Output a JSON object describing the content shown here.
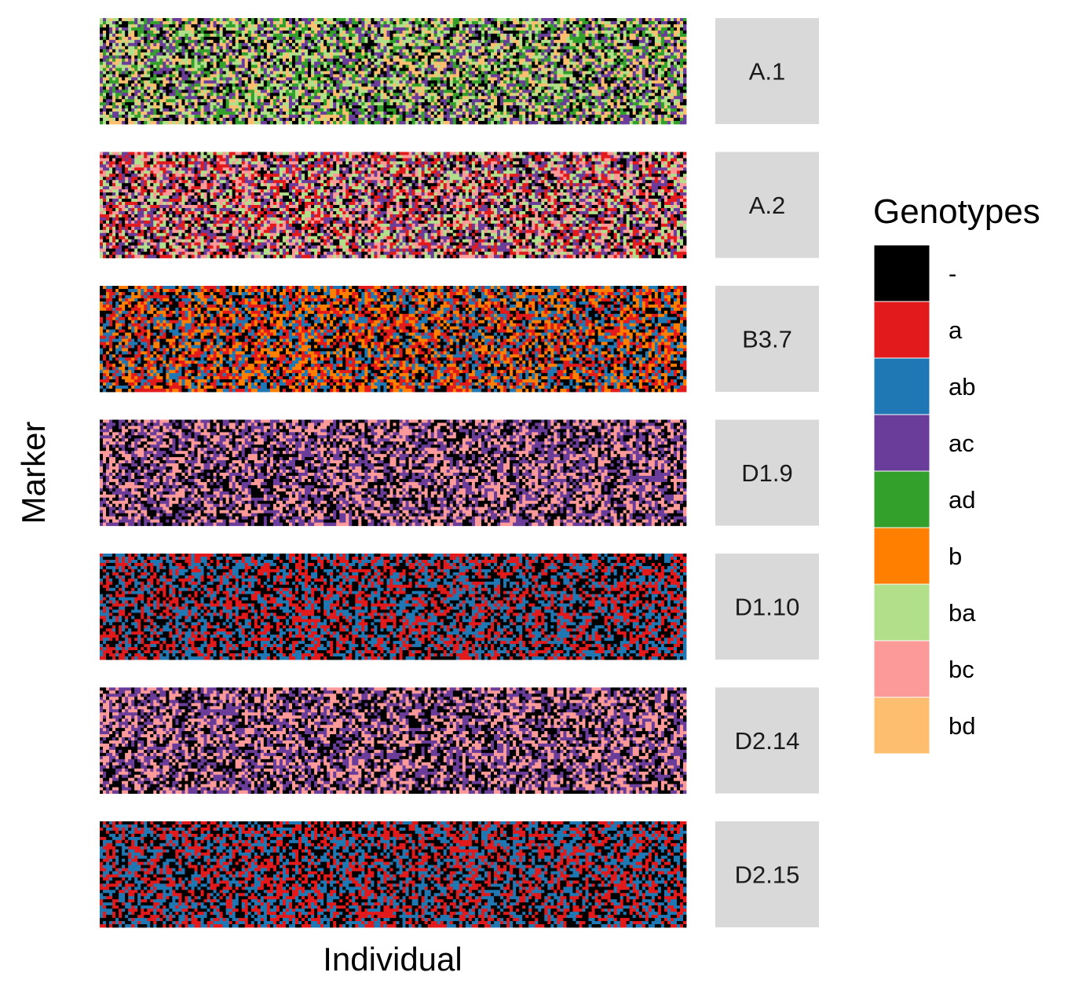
{
  "chart_data": {
    "type": "heatmap",
    "xlabel": "Individual",
    "ylabel": "Marker",
    "grid": false,
    "legend": {
      "title": "Genotypes",
      "placement": "right",
      "entries": [
        {
          "label": "-",
          "color": "#000000"
        },
        {
          "label": "a",
          "color": "#E31A1C"
        },
        {
          "label": "ab",
          "color": "#1F78B4"
        },
        {
          "label": "ac",
          "color": "#6A3D9A"
        },
        {
          "label": "ad",
          "color": "#33A02C"
        },
        {
          "label": "b",
          "color": "#FF7F00"
        },
        {
          "label": "ba",
          "color": "#B2DF8A"
        },
        {
          "label": "bc",
          "color": "#FB9A99"
        },
        {
          "label": "bd",
          "color": "#FDBF6F"
        }
      ]
    },
    "facets": [
      {
        "label": "A.1",
        "genotypes": [
          "-",
          "ac",
          "ad",
          "ba",
          "bd"
        ]
      },
      {
        "label": "A.2",
        "genotypes": [
          "-",
          "a",
          "ac",
          "ba",
          "bc"
        ]
      },
      {
        "label": "B3.7",
        "genotypes": [
          "-",
          "a",
          "ab",
          "b"
        ]
      },
      {
        "label": "D1.9",
        "genotypes": [
          "-",
          "ac",
          "bc"
        ]
      },
      {
        "label": "D1.10",
        "genotypes": [
          "-",
          "a",
          "ab"
        ]
      },
      {
        "label": "D2.14",
        "genotypes": [
          "-",
          "ac",
          "bc"
        ]
      },
      {
        "label": "D2.15",
        "genotypes": [
          "-",
          "a",
          "ab"
        ]
      }
    ],
    "strip_fill": "#D9D9D9"
  }
}
